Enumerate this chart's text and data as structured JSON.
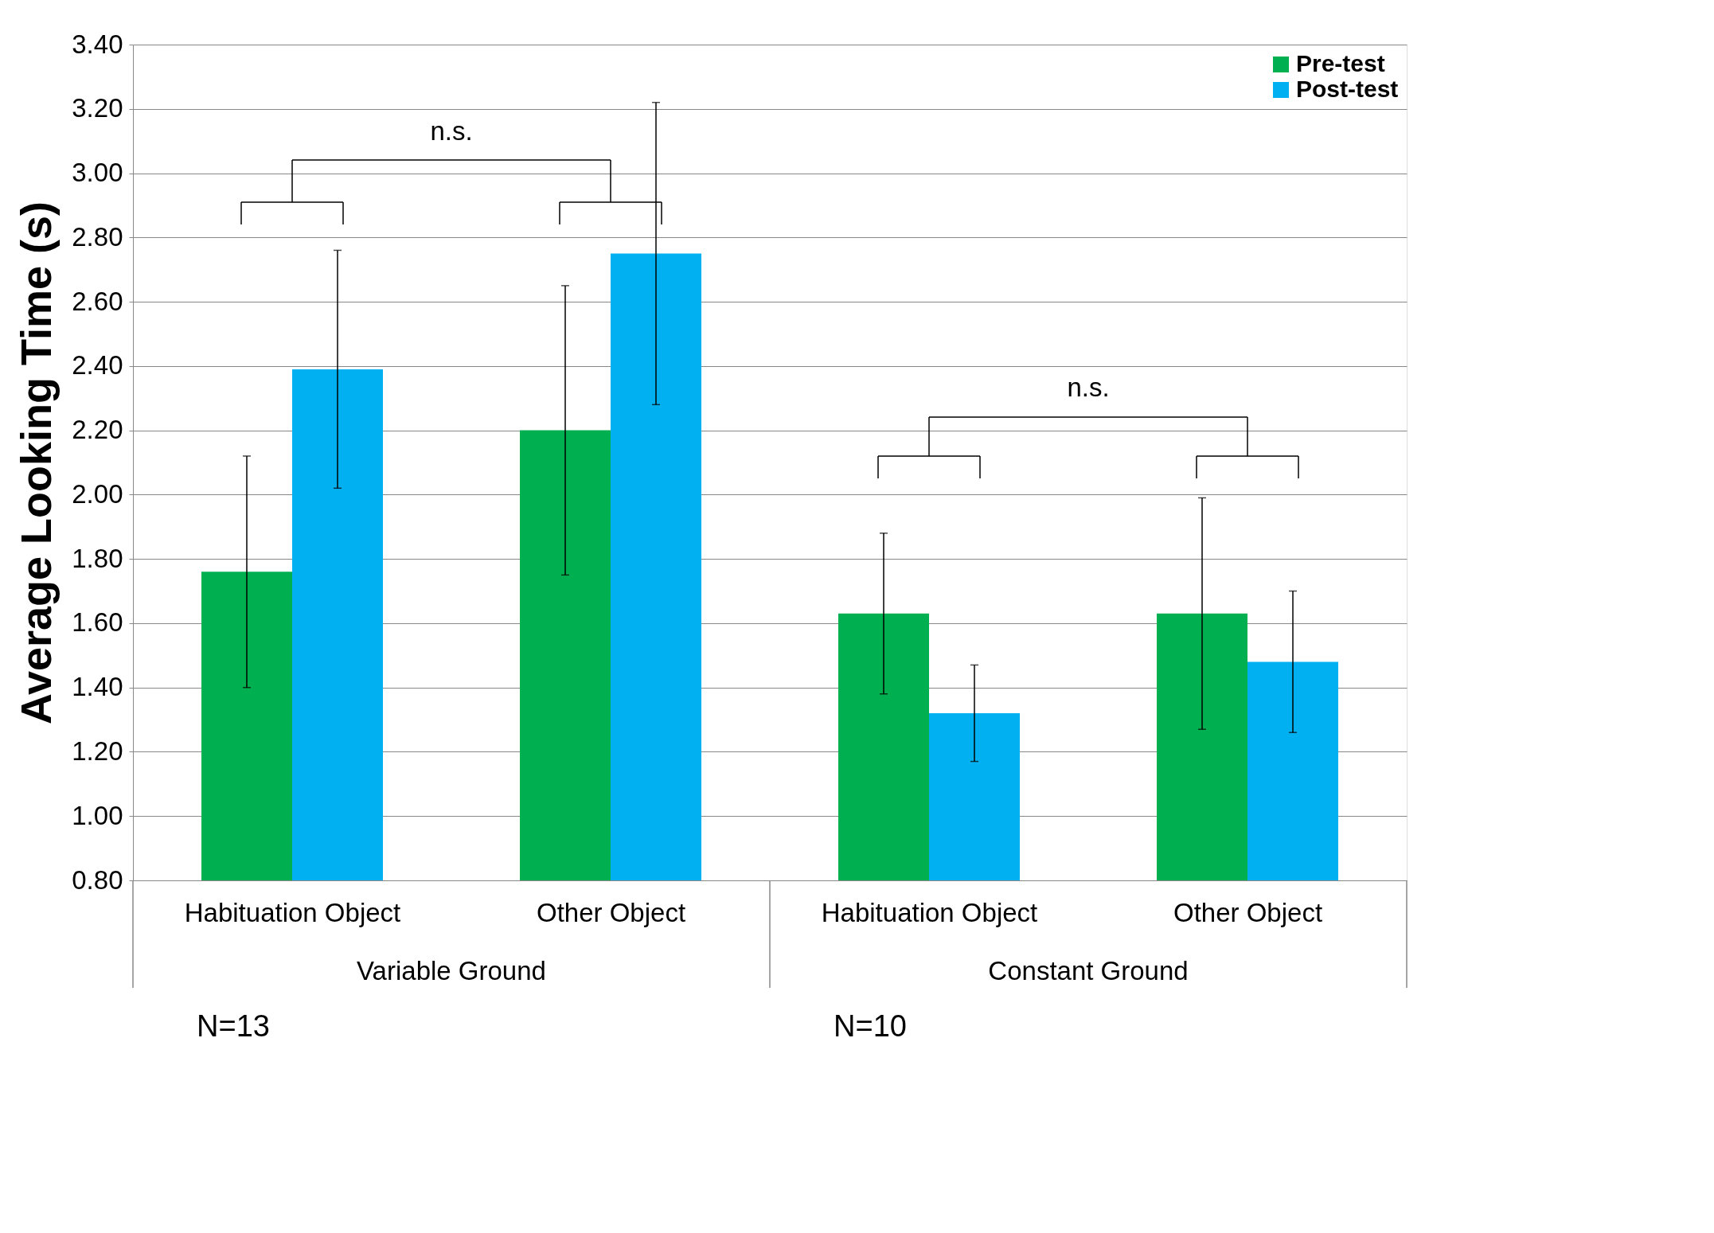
{
  "chart_data": {
    "type": "bar",
    "ylabel": "Average Looking Time (s)",
    "categories": [
      "Habituation Object",
      "Other Object",
      "Habituation Object",
      "Other Object"
    ],
    "series": [
      {
        "name": "Pre-test",
        "color": "#00b050",
        "values": [
          1.76,
          2.2,
          1.63,
          1.63
        ],
        "errors": [
          0.36,
          0.45,
          0.25,
          0.36
        ]
      },
      {
        "name": "Post-test",
        "color": "#00b0f0",
        "values": [
          2.39,
          2.75,
          1.32,
          1.48
        ],
        "errors": [
          0.37,
          0.47,
          0.15,
          0.22
        ]
      }
    ],
    "ylim": [
      0.8,
      3.4
    ],
    "yticks": [
      {
        "value": 0.8,
        "label": "0.80"
      },
      {
        "value": 1.0,
        "label": "1.00"
      },
      {
        "value": 1.2,
        "label": "1.20"
      },
      {
        "value": 1.4,
        "label": "1.40"
      },
      {
        "value": 1.6,
        "label": "1.60"
      },
      {
        "value": 1.8,
        "label": "1.80"
      },
      {
        "value": 2.0,
        "label": "2.00"
      },
      {
        "value": 2.2,
        "label": "2.20"
      },
      {
        "value": 2.4,
        "label": "2.40"
      },
      {
        "value": 2.6,
        "label": "2.60"
      },
      {
        "value": 2.8,
        "label": "2.80"
      },
      {
        "value": 3.0,
        "label": "3.00"
      },
      {
        "value": 3.2,
        "label": "3.20"
      },
      {
        "value": 3.4,
        "label": "3.40"
      }
    ],
    "grid": "y",
    "legend": "top right",
    "annotations": [
      "n.s.",
      "n.s.",
      "Variable Ground",
      "Constant Ground",
      "N=13",
      "N=10"
    ]
  }
}
